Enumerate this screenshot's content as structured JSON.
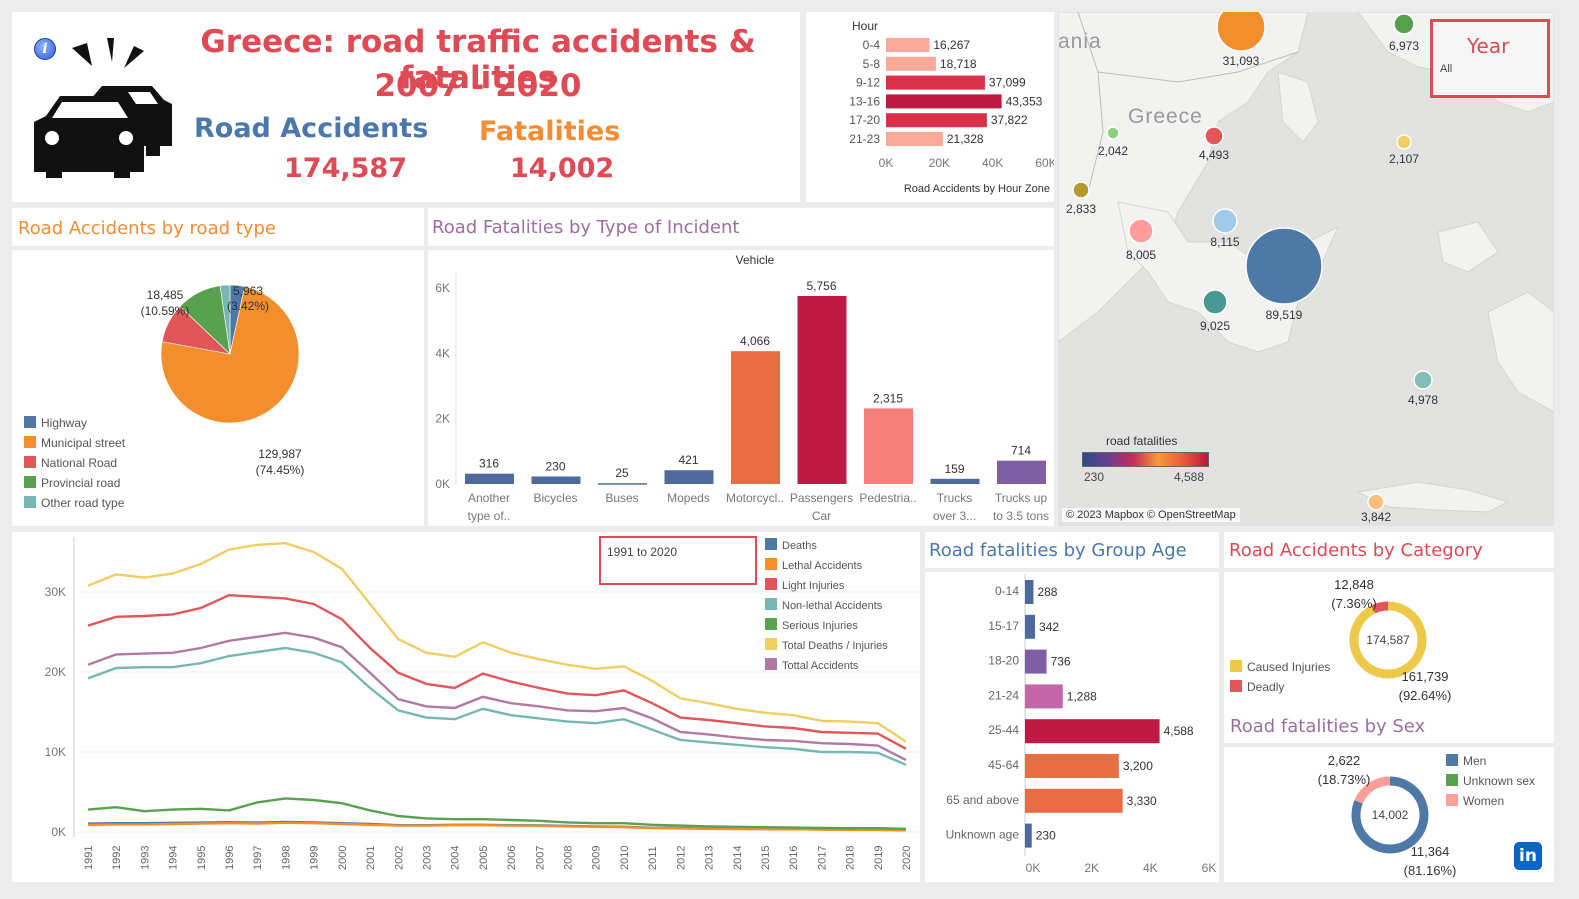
{
  "header": {
    "title": "Greece: road traffic accidents & fatalities",
    "years": "2007 - 2020",
    "accidents_label": "Road Accidents",
    "accidents_value": "174,587",
    "fatalities_label": "Fatalities",
    "fatalities_value": "14,002",
    "info_icon": "info-icon",
    "logo_icon": "car-crash-icon"
  },
  "colors": {
    "red_title": "#df4a55",
    "blue_title": "#4a78ad",
    "orange_title": "#f48c34",
    "purple_title": "#9c6fa0",
    "highway": "#4e79a7",
    "municipal": "#f28e2b",
    "national": "#e15759",
    "provincial": "#59a14f",
    "other": "#76b7b2"
  },
  "filters": {
    "year_label": "Year",
    "year_value": "All",
    "range_label": "1991 to 2020"
  },
  "map": {
    "title_label": "road fatalities",
    "scale_min": "230",
    "scale_max": "4,588",
    "credit": "© 2023 Mapbox © OpenStreetMap",
    "place_greece": "Greece",
    "place_albania": "ania",
    "bubbles": [
      {
        "label": "31,093",
        "color": "#f28e2b"
      },
      {
        "label": "6,973",
        "color": "#59a14f"
      },
      {
        "label": "2,042",
        "color": "#8cd17d"
      },
      {
        "label": "4,493",
        "color": "#e15759"
      },
      {
        "label": "2,107",
        "color": "#f1ce63"
      },
      {
        "label": "2,833",
        "color": "#b6992d"
      },
      {
        "label": "8,005",
        "color": "#ff9d9a"
      },
      {
        "label": "8,115",
        "color": "#a0cbe8"
      },
      {
        "label": "89,519",
        "color": "#4e79a7"
      },
      {
        "label": "9,025",
        "color": "#499894"
      },
      {
        "label": "4,978",
        "color": "#86bcb6"
      },
      {
        "label": "3,842",
        "color": "#ffbe7d"
      }
    ]
  },
  "chart_data": [
    {
      "type": "bar",
      "title": "Road Accidents by Hour Zone",
      "ylabel": "Hour",
      "categories": [
        "0-4",
        "5-8",
        "9-12",
        "13-16",
        "17-20",
        "21-23"
      ],
      "values": [
        16267,
        18718,
        37099,
        43353,
        37822,
        21328
      ],
      "value_labels": [
        "16,267",
        "18,718",
        "37,099",
        "43,353",
        "37,822",
        "21,328"
      ],
      "xlim": [
        0,
        60000
      ],
      "ticks": [
        "0K",
        "20K",
        "40K",
        "60K"
      ],
      "orientation": "horizontal"
    },
    {
      "type": "pie",
      "title": "Road Accidents by road type",
      "categories": [
        "Highway",
        "Municipal street",
        "National Road",
        "Provincial road",
        "Other road type"
      ],
      "values": [
        5963,
        129987,
        16152,
        18485,
        4000
      ],
      "slice_labels": [
        {
          "value": "5,963",
          "pct": "(3.42%)"
        },
        {
          "value": "129,987",
          "pct": "(74.45%)"
        },
        {
          "value": "18,485",
          "pct": "(10.59%)"
        }
      ]
    },
    {
      "type": "bar",
      "title": "Road Fatalities by Type of Incident",
      "subtitle": "Vehicle",
      "categories": [
        "Another type of..",
        "Bicycles",
        "Buses",
        "Mopeds",
        "Motorcycl..",
        "Passengers Car",
        "Pedestria..",
        "Trucks over 3...",
        "Trucks up to 3.5 tons"
      ],
      "category_lines": [
        [
          "Another",
          "type of.."
        ],
        [
          "Bicycles"
        ],
        [
          "Buses"
        ],
        [
          "Mopeds"
        ],
        [
          "Motorcycl.."
        ],
        [
          "Passengers",
          "Car"
        ],
        [
          "Pedestria.."
        ],
        [
          "Trucks",
          "over 3..."
        ],
        [
          "Trucks up",
          "to 3.5 tons"
        ]
      ],
      "values": [
        316,
        230,
        25,
        421,
        4066,
        5756,
        2315,
        159,
        714
      ],
      "value_labels": [
        "316",
        "230",
        "25",
        "421",
        "4,066",
        "5,756",
        "2,315",
        "159",
        "714"
      ],
      "colors": [
        "#4e6a9c",
        "#4e6a9c",
        "#4e6a9c",
        "#4e6a9c",
        "#e96d43",
        "#be1a44",
        "#f47e7a",
        "#4e6a9c",
        "#7e5fa3"
      ],
      "ylim": [
        0,
        6000
      ],
      "ticks": [
        "0K",
        "2K",
        "4K",
        "6K"
      ]
    },
    {
      "type": "line",
      "title": "",
      "x": [
        1991,
        1992,
        1993,
        1994,
        1995,
        1996,
        1997,
        1998,
        1999,
        2000,
        2001,
        2002,
        2003,
        2004,
        2005,
        2006,
        2007,
        2008,
        2009,
        2010,
        2011,
        2012,
        2013,
        2014,
        2015,
        2016,
        2017,
        2018,
        2019,
        2020
      ],
      "x_labels": [
        "1991",
        "1992",
        "1993",
        "1994",
        "1995",
        "1996",
        "1997",
        "1998",
        "1999",
        "2000",
        "2001",
        "2002",
        "2003",
        "2004",
        "2005",
        "2006",
        "2007",
        "2008",
        "2009",
        "2010",
        "2011",
        "2012",
        "2013",
        "2014",
        "2015",
        "2016",
        "2017",
        "2018",
        "2019",
        "2020"
      ],
      "ylim": [
        0,
        36000
      ],
      "ticks": [
        "0K",
        "10K",
        "20K",
        "30K"
      ],
      "series": [
        {
          "name": "Deaths",
          "color": "#4e79a7",
          "values": [
            1050,
            1100,
            1100,
            1150,
            1180,
            1220,
            1180,
            1260,
            1200,
            1100,
            1000,
            850,
            850,
            900,
            900,
            850,
            830,
            750,
            700,
            650,
            530,
            500,
            420,
            390,
            380,
            350,
            320,
            300,
            280,
            250
          ]
        },
        {
          "name": "Lethal Accidents",
          "color": "#f28e2b",
          "values": [
            900,
            950,
            950,
            1000,
            1050,
            1100,
            1050,
            1150,
            1100,
            1000,
            900,
            800,
            800,
            850,
            850,
            800,
            780,
            700,
            650,
            600,
            500,
            450,
            400,
            370,
            350,
            330,
            300,
            280,
            260,
            230
          ]
        },
        {
          "name": "Light Injuries",
          "color": "#e15759",
          "values": [
            25800,
            26900,
            27000,
            27200,
            28000,
            29600,
            29400,
            29200,
            28500,
            26600,
            23000,
            19900,
            18500,
            18000,
            19800,
            18800,
            18000,
            17300,
            17100,
            17700,
            16100,
            14300,
            14000,
            13600,
            13200,
            13000,
            12500,
            12400,
            12300,
            10400
          ]
        },
        {
          "name": "Non-lethal Accidents",
          "color": "#76b7b2",
          "values": [
            19200,
            20500,
            20600,
            20600,
            21100,
            22000,
            22500,
            23000,
            22400,
            21200,
            18000,
            15200,
            14300,
            14100,
            15400,
            14600,
            14200,
            13800,
            13600,
            14100,
            12800,
            11500,
            11200,
            10900,
            10600,
            10400,
            10000,
            10000,
            9900,
            8400
          ]
        },
        {
          "name": "Serious Injuries",
          "color": "#59a14f",
          "values": [
            2800,
            3100,
            2600,
            2800,
            2900,
            2700,
            3700,
            4200,
            4000,
            3600,
            2700,
            2000,
            1700,
            1600,
            1600,
            1500,
            1400,
            1200,
            1100,
            1100,
            900,
            800,
            700,
            650,
            600,
            550,
            500,
            480,
            470,
            400
          ]
        },
        {
          "name": "Total Deaths / Injuries",
          "color": "#f1ce63",
          "values": [
            30800,
            32200,
            31800,
            32300,
            33500,
            35300,
            35900,
            36100,
            35000,
            32900,
            28500,
            24100,
            22400,
            21900,
            23700,
            22400,
            21600,
            20900,
            20400,
            20700,
            18900,
            16700,
            16100,
            15400,
            14900,
            14600,
            13900,
            13800,
            13600,
            11300
          ]
        },
        {
          "name": "Tottal Accidents",
          "color": "#b07aa1",
          "values": [
            20900,
            22200,
            22300,
            22400,
            23000,
            23900,
            24400,
            24900,
            24300,
            23100,
            19900,
            16600,
            15700,
            15500,
            16900,
            16100,
            15700,
            15200,
            15100,
            15500,
            14200,
            12500,
            12200,
            11800,
            11500,
            11400,
            11100,
            11000,
            10800,
            9000
          ]
        }
      ]
    },
    {
      "type": "bar",
      "title": "Road fatalities by Group Age",
      "orientation": "horizontal",
      "categories": [
        "0-14",
        "15-17",
        "18-20",
        "21-24",
        "25-44",
        "45-64",
        "65 and above",
        "Unknown age"
      ],
      "values": [
        288,
        342,
        736,
        1288,
        4588,
        3200,
        3330,
        230
      ],
      "value_labels": [
        "288",
        "342",
        "736",
        "1,288",
        "4,588",
        "3,200",
        "3,330",
        "230"
      ],
      "colors": [
        "#4e6a9c",
        "#4e6a9c",
        "#7e5fa3",
        "#c466a8",
        "#be1a44",
        "#e96d43",
        "#e96d43",
        "#4e6a9c"
      ],
      "xlim": [
        0,
        6000
      ],
      "ticks": [
        "0K",
        "2K",
        "4K",
        "6K"
      ]
    },
    {
      "type": "pie",
      "title": "Road Accidents by Category",
      "center_label": "174,587",
      "categories": [
        "Caused Injuries",
        "Deadly"
      ],
      "values": [
        161739,
        12848
      ],
      "colors": [
        "#edc948",
        "#e15759"
      ],
      "slice_labels": [
        {
          "value": "161,739",
          "pct": "(92.64%)"
        },
        {
          "value": "12,848",
          "pct": "(7.36%)"
        }
      ]
    },
    {
      "type": "pie",
      "title": "Road fatalities by Sex",
      "center_label": "14,002",
      "categories": [
        "Men",
        "Unknown sex",
        "Women"
      ],
      "values": [
        11364,
        16,
        2622
      ],
      "colors": [
        "#4e79a7",
        "#59a14f",
        "#ff9d9a"
      ],
      "slice_labels": [
        {
          "value": "11,364",
          "pct": "(81.16%)"
        },
        {
          "value": "2,622",
          "pct": "(18.73%)"
        }
      ]
    }
  ]
}
